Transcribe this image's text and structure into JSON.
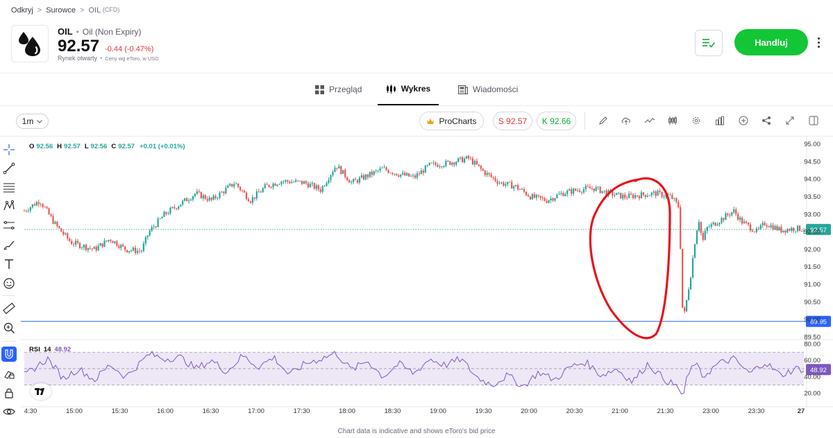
{
  "breadcrumb": {
    "item1": "Odkryj",
    "item2": "Surowce",
    "item3": "OIL",
    "item3_suffix": "(CFD)",
    "sep": ">"
  },
  "instrument": {
    "symbol": "OIL",
    "dot": "•",
    "name": "Oil (Non Expiry)",
    "price": "92.57",
    "change": "-0.44 (-0.47%)",
    "market_status": "Rynek otwarty",
    "price_note": "Ceny wg eToro, w USD"
  },
  "actions": {
    "trade_label": "Handluj",
    "watchlist_icon": "watchlist-check-icon",
    "more_icon": "more-vertical-icon"
  },
  "tabs": [
    {
      "label": "Przegląd",
      "icon": "grid-icon",
      "active": false
    },
    {
      "label": "Wykres",
      "icon": "candles-icon",
      "active": true
    },
    {
      "label": "Wiadomości",
      "icon": "news-icon",
      "active": false
    }
  ],
  "toolbar": {
    "interval": "1m",
    "prochart_label": "ProCharts",
    "sell_label": "S 92.57",
    "buy_label": "K 92.66",
    "icons": [
      "pencil-icon",
      "cloud-icon",
      "indicator-line-icon",
      "candle-type-icon",
      "settings-icon",
      "bar-chart-icon",
      "add-icon",
      "share-icon",
      "expand-icon",
      "panel-icon"
    ]
  },
  "left_tools": [
    "crosshair-icon",
    "trendline-icon",
    "fib-icon",
    "pattern-icon",
    "measure-range-icon",
    "brush-icon",
    "text-icon",
    "emoji-icon",
    "ruler-icon",
    "zoom-in-icon",
    "magnet-icon",
    "lock-drawings-icon",
    "lock-icon",
    "eye-icon"
  ],
  "ohlc": {
    "o_label": "O",
    "o": "92.56",
    "h_label": "H",
    "h": "92.57",
    "l_label": "L",
    "l": "92.56",
    "c_label": "C",
    "c": "92.57",
    "change": "+0.01 (+0.01%)"
  },
  "rsi": {
    "label": "RSI",
    "period": "14",
    "value": "48.92"
  },
  "colors": {
    "up": "#26a69a",
    "down": "#ef5350",
    "accent_green": "#13c636",
    "sell_red": "#e0353b",
    "rsi_line": "#7e57c2",
    "rsi_band": "#ede7f6",
    "hline": "#2962ff",
    "annotation": "#e8141c"
  },
  "chart_data": {
    "type": "candlestick",
    "interval": "1m",
    "y_ticks": [
      "95.00",
      "94.50",
      "94.00",
      "93.50",
      "93.00",
      "92.50",
      "92.00",
      "91.50",
      "91.00",
      "90.50",
      "90.00",
      "89.50"
    ],
    "ylim": [
      89.45,
      95.1
    ],
    "x_ticks": [
      "4:30",
      "15:00",
      "15:30",
      "16:00",
      "16:30",
      "17:00",
      "17:30",
      "18:00",
      "18:30",
      "19:00",
      "19:30",
      "20:00",
      "20:30",
      "21:00",
      "21:30",
      "23:00",
      "23:30",
      "27"
    ],
    "price_path": [
      [
        0,
        93.1
      ],
      [
        0.02,
        93.4
      ],
      [
        0.04,
        92.7
      ],
      [
        0.06,
        92.2
      ],
      [
        0.09,
        92.0
      ],
      [
        0.11,
        92.3
      ],
      [
        0.13,
        92.0
      ],
      [
        0.15,
        91.95
      ],
      [
        0.16,
        92.5
      ],
      [
        0.18,
        93.0
      ],
      [
        0.2,
        93.3
      ],
      [
        0.22,
        93.6
      ],
      [
        0.24,
        93.4
      ],
      [
        0.27,
        93.9
      ],
      [
        0.29,
        93.4
      ],
      [
        0.31,
        93.8
      ],
      [
        0.33,
        93.95
      ],
      [
        0.36,
        93.9
      ],
      [
        0.38,
        93.7
      ],
      [
        0.4,
        94.4
      ],
      [
        0.42,
        93.9
      ],
      [
        0.44,
        94.1
      ],
      [
        0.46,
        94.3
      ],
      [
        0.48,
        94.15
      ],
      [
        0.5,
        94.05
      ],
      [
        0.52,
        94.4
      ],
      [
        0.54,
        94.45
      ],
      [
        0.57,
        94.6
      ],
      [
        0.59,
        94.2
      ],
      [
        0.61,
        93.9
      ],
      [
        0.63,
        93.8
      ],
      [
        0.65,
        93.5
      ],
      [
        0.67,
        93.4
      ],
      [
        0.69,
        93.6
      ],
      [
        0.71,
        93.7
      ],
      [
        0.73,
        93.75
      ],
      [
        0.75,
        93.6
      ],
      [
        0.77,
        93.5
      ],
      [
        0.79,
        93.55
      ],
      [
        0.81,
        93.6
      ],
      [
        0.83,
        93.5
      ],
      [
        0.84,
        93.2
      ],
      [
        0.845,
        89.9
      ],
      [
        0.85,
        90.6
      ],
      [
        0.855,
        91.3
      ],
      [
        0.86,
        92.2
      ],
      [
        0.865,
        92.9
      ],
      [
        0.87,
        92.2
      ],
      [
        0.875,
        92.6
      ],
      [
        0.89,
        92.8
      ],
      [
        0.91,
        93.1
      ],
      [
        0.92,
        92.8
      ],
      [
        0.94,
        92.5
      ],
      [
        0.95,
        92.75
      ],
      [
        0.97,
        92.55
      ],
      [
        0.99,
        92.6
      ],
      [
        1.0,
        92.57
      ]
    ],
    "price_label": "92.57",
    "horizontal_line": {
      "value": 89.95,
      "label": "89.95"
    },
    "rsi": {
      "y_ticks": [
        "80.00",
        "60.00",
        "40.00",
        "20.00"
      ],
      "ylim": [
        12,
        82
      ],
      "bands": [
        70,
        50,
        30
      ],
      "current": "48.92",
      "path": [
        [
          0,
          42
        ],
        [
          0.03,
          62
        ],
        [
          0.05,
          38
        ],
        [
          0.07,
          50
        ],
        [
          0.09,
          36
        ],
        [
          0.11,
          55
        ],
        [
          0.13,
          40
        ],
        [
          0.15,
          58
        ],
        [
          0.16,
          68
        ],
        [
          0.18,
          62
        ],
        [
          0.2,
          64
        ],
        [
          0.22,
          50
        ],
        [
          0.24,
          60
        ],
        [
          0.26,
          46
        ],
        [
          0.28,
          66
        ],
        [
          0.3,
          52
        ],
        [
          0.32,
          64
        ],
        [
          0.34,
          42
        ],
        [
          0.36,
          56
        ],
        [
          0.38,
          62
        ],
        [
          0.4,
          69
        ],
        [
          0.42,
          48
        ],
        [
          0.44,
          60
        ],
        [
          0.46,
          40
        ],
        [
          0.48,
          56
        ],
        [
          0.5,
          44
        ],
        [
          0.52,
          62
        ],
        [
          0.54,
          54
        ],
        [
          0.56,
          62
        ],
        [
          0.58,
          40
        ],
        [
          0.6,
          30
        ],
        [
          0.62,
          42
        ],
        [
          0.64,
          28
        ],
        [
          0.66,
          46
        ],
        [
          0.68,
          36
        ],
        [
          0.7,
          52
        ],
        [
          0.72,
          58
        ],
        [
          0.74,
          42
        ],
        [
          0.76,
          50
        ],
        [
          0.78,
          34
        ],
        [
          0.8,
          56
        ],
        [
          0.82,
          38
        ],
        [
          0.84,
          26
        ],
        [
          0.845,
          14
        ],
        [
          0.85,
          38
        ],
        [
          0.86,
          58
        ],
        [
          0.87,
          40
        ],
        [
          0.89,
          56
        ],
        [
          0.91,
          62
        ],
        [
          0.93,
          44
        ],
        [
          0.95,
          58
        ],
        [
          0.97,
          42
        ],
        [
          0.99,
          50
        ],
        [
          1.0,
          48.92
        ]
      ]
    }
  }
}
